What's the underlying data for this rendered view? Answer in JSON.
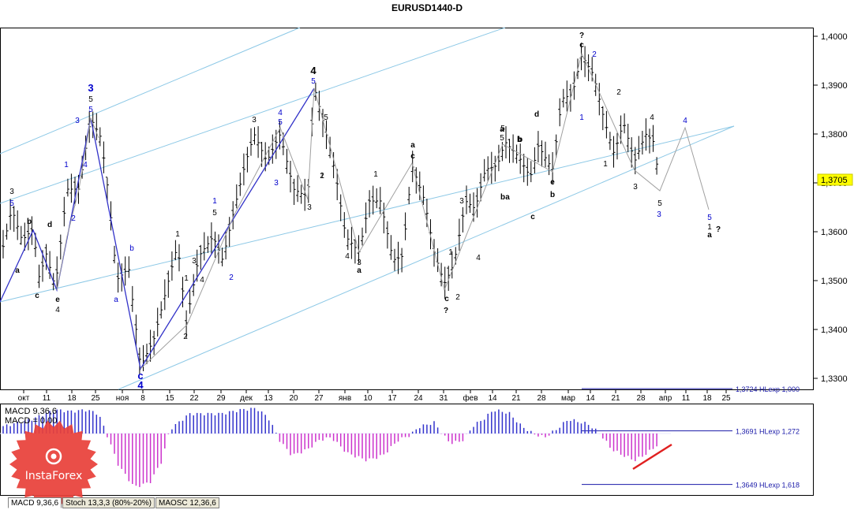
{
  "chart_title": "EURUSD1440-D",
  "price_axis": {
    "labels": [
      "1,4000",
      "1,3900",
      "1,3800",
      "1,3700",
      "1,3600",
      "1,3500",
      "1,3400",
      "1,3300"
    ],
    "current_price": "1,3705",
    "current_value": 1.3705
  },
  "time_axis": {
    "labels": [
      "окт",
      "11",
      "18",
      "25",
      "ноя",
      "8",
      "15",
      "22",
      "29",
      "дек",
      "13",
      "20",
      "27",
      "янв",
      "10",
      "17",
      "24",
      "31",
      "фев",
      "14",
      "21",
      "28",
      "мар",
      "14",
      "21",
      "28",
      "апр",
      "11",
      "18",
      "25"
    ]
  },
  "levels": [
    {
      "label": "1,3724 HLexp 1,000",
      "value": 1.3724
    },
    {
      "label": "1,3691 HLexp 1,272",
      "value": 1.3691
    },
    {
      "label": "1,3649 HLexp 1,618",
      "value": 1.3649
    }
  ],
  "indicator": {
    "title": "MACD 9,36,6",
    "value_label": "MACD = 0.00"
  },
  "tabs": [
    "MACD 9,36,6",
    "Stoch 13,3,3 (80%-20%)",
    "MAOSC 12,36,6"
  ],
  "logo": {
    "text": "InstaForex"
  },
  "colors": {
    "blue": "#0000cc",
    "up_hist": "#3333cc",
    "down_hist": "#cc33cc",
    "level": "#1a1aa8",
    "trend": "#e02020",
    "logo": "#e8413a"
  },
  "wave_labels": [
    {
      "t": "3",
      "c": "k"
    },
    {
      "t": "5",
      "c": "b"
    },
    {
      "t": "b",
      "c": "k"
    },
    {
      "t": "a",
      "c": "k"
    },
    {
      "t": "d",
      "c": "k"
    },
    {
      "t": "c",
      "c": "k"
    },
    {
      "t": "e",
      "c": "k"
    },
    {
      "t": "4",
      "c": "k"
    },
    {
      "t": "3",
      "c": "b"
    },
    {
      "t": "5",
      "c": "k"
    },
    {
      "t": "5",
      "c": "b"
    },
    {
      "t": "3",
      "c": "b"
    },
    {
      "t": "1",
      "c": "b"
    },
    {
      "t": "4",
      "c": "b"
    },
    {
      "t": "2",
      "c": "b"
    },
    {
      "t": "b",
      "c": "b"
    },
    {
      "t": "a",
      "c": "b"
    },
    {
      "t": "c",
      "c": "b"
    },
    {
      "t": "4",
      "c": "b"
    },
    {
      "t": "1",
      "c": "k"
    },
    {
      "t": "1",
      "c": "k"
    },
    {
      "t": "3",
      "c": "k"
    },
    {
      "t": "4",
      "c": "k"
    },
    {
      "t": "2",
      "c": "k"
    },
    {
      "t": "5",
      "c": "k"
    },
    {
      "t": "3",
      "c": "k"
    },
    {
      "t": "1",
      "c": "k"
    },
    {
      "t": "1",
      "c": "b"
    },
    {
      "t": "2",
      "c": "b"
    },
    {
      "t": "3",
      "c": "b"
    },
    {
      "t": "4",
      "c": "b"
    },
    {
      "t": "3",
      "c": "k"
    },
    {
      "t": "5",
      "c": "b"
    },
    {
      "t": "4",
      "c": "k"
    },
    {
      "t": "5",
      "c": "b"
    },
    {
      "t": "5",
      "c": "k"
    },
    {
      "t": "2",
      "c": "k"
    },
    {
      "t": "1",
      "c": "k"
    },
    {
      "t": "a",
      "c": "k"
    },
    {
      "t": "4",
      "c": "k"
    },
    {
      "t": "3",
      "c": "k"
    },
    {
      "t": "5",
      "c": "k"
    },
    {
      "t": "a",
      "c": "k"
    },
    {
      "t": "b",
      "c": "k"
    },
    {
      "t": "b",
      "c": "k"
    },
    {
      "t": "c",
      "c": "k"
    },
    {
      "t": "c",
      "c": "k"
    },
    {
      "t": "?",
      "c": "k"
    },
    {
      "t": "1",
      "c": "k"
    },
    {
      "t": "2",
      "c": "k"
    },
    {
      "t": "3",
      "c": "k"
    },
    {
      "t": "4",
      "c": "k"
    },
    {
      "t": "a",
      "c": "k"
    },
    {
      "t": "5",
      "c": "k"
    },
    {
      "t": "a",
      "c": "k"
    },
    {
      "t": "b",
      "c": "k"
    },
    {
      "t": "c",
      "c": "k"
    },
    {
      "t": "d",
      "c": "k"
    },
    {
      "t": "e",
      "c": "k"
    },
    {
      "t": "b",
      "c": "k"
    },
    {
      "t": "?",
      "c": "k"
    },
    {
      "t": "c",
      "c": "k"
    },
    {
      "t": "2",
      "c": "b"
    },
    {
      "t": "1",
      "c": "b"
    },
    {
      "t": "2",
      "c": "k"
    },
    {
      "t": "1",
      "c": "k"
    },
    {
      "t": "3",
      "c": "k"
    },
    {
      "t": "4",
      "c": "k"
    },
    {
      "t": "5",
      "c": "k"
    },
    {
      "t": "3",
      "c": "b"
    },
    {
      "t": "4",
      "c": "b"
    },
    {
      "t": "5",
      "c": "b"
    },
    {
      "t": "1",
      "c": "k"
    },
    {
      "t": "a",
      "c": "k"
    },
    {
      "t": "?",
      "c": "k"
    }
  ]
}
